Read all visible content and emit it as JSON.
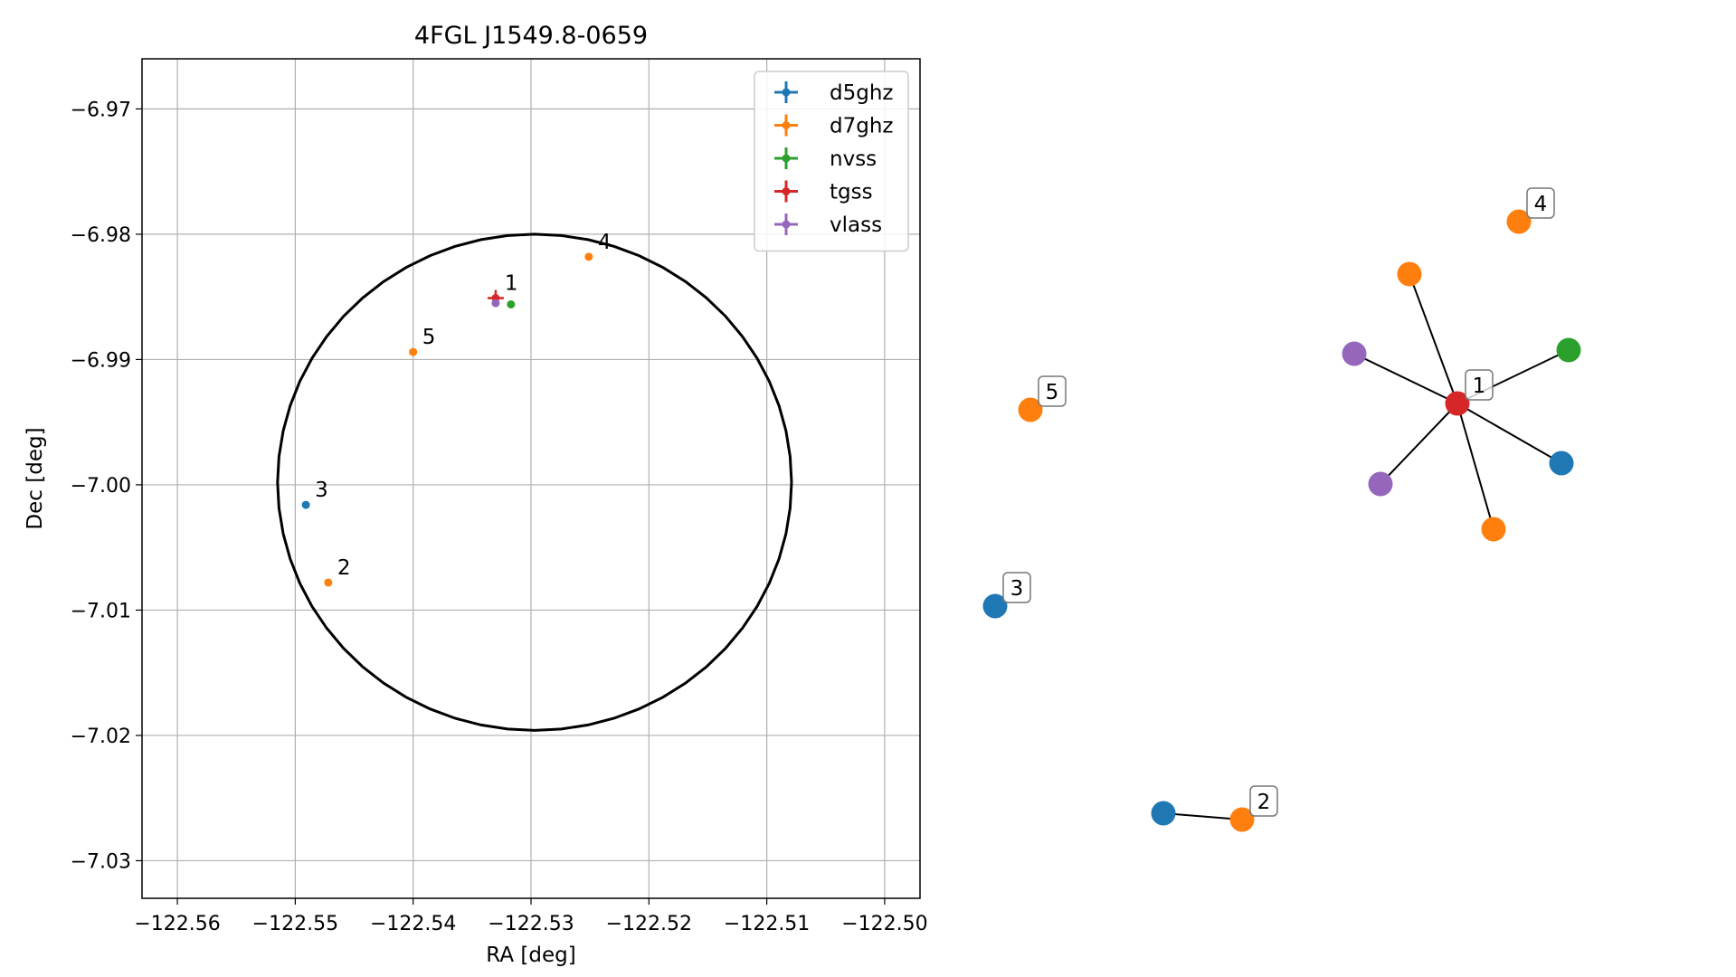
{
  "chart_data": [
    {
      "type": "scatter",
      "title": "4FGL J1549.8-0659",
      "xlabel": "RA [deg]",
      "ylabel": "Dec [deg]",
      "xlim": [
        -122.563,
        -122.497
      ],
      "ylim": [
        -7.033,
        -6.966
      ],
      "x_ticks": [
        -122.56,
        -122.55,
        -122.54,
        -122.53,
        -122.52,
        -122.51,
        -122.5
      ],
      "x_tick_labels": [
        "−122.56",
        "−122.55",
        "−122.54",
        "−122.53",
        "−122.52",
        "−122.51",
        "−122.50"
      ],
      "y_ticks": [
        -6.97,
        -6.98,
        -6.99,
        -7.0,
        -7.01,
        -7.02,
        -7.03
      ],
      "y_tick_labels": [
        "−6.97",
        "−6.98",
        "−6.99",
        "−7.00",
        "−7.01",
        "−7.02",
        "−7.03"
      ],
      "grid": true,
      "legend_position": "top-right",
      "colors": {
        "d5ghz": "#1f77b4",
        "d7ghz": "#ff7f0e",
        "nvss": "#2ca02c",
        "tgss": "#d62728",
        "vlass": "#9467bd"
      },
      "series": [
        {
          "name": "d5ghz",
          "points": [
            {
              "x": -122.5491,
              "y": -7.0016,
              "label": "3"
            }
          ]
        },
        {
          "name": "d7ghz",
          "points": [
            {
              "x": -122.5251,
              "y": -6.9818,
              "label": "4"
            },
            {
              "x": -122.54,
              "y": -6.9894,
              "label": "5"
            },
            {
              "x": -122.5472,
              "y": -7.0078,
              "label": "2"
            }
          ]
        },
        {
          "name": "nvss",
          "points": [
            {
              "x": -122.5317,
              "y": -6.9856,
              "label": ""
            }
          ]
        },
        {
          "name": "tgss",
          "points": [
            {
              "x": -122.533,
              "y": -6.9851,
              "label": "1"
            }
          ]
        },
        {
          "name": "vlass",
          "points": [
            {
              "x": -122.533,
              "y": -6.9855,
              "label": ""
            }
          ]
        }
      ],
      "ellipse": {
        "center_x": -122.5297,
        "center_y": -6.9998,
        "semi_major_x": 0.0218,
        "semi_minor_y": 0.0198
      }
    },
    {
      "type": "network",
      "colors": {
        "d5ghz": "#1f77b4",
        "d7ghz": "#ff7f0e",
        "nvss": "#2ca02c",
        "tgss": "#d62728",
        "vlass": "#9467bd"
      },
      "nodes": [
        {
          "id": "n1",
          "group": "tgss",
          "label": "1"
        },
        {
          "id": "n1a",
          "group": "d7ghz",
          "label": ""
        },
        {
          "id": "n1b",
          "group": "nvss",
          "label": ""
        },
        {
          "id": "n1c",
          "group": "vlass",
          "label": ""
        },
        {
          "id": "n1d",
          "group": "d5ghz",
          "label": ""
        },
        {
          "id": "n1e",
          "group": "vlass",
          "label": ""
        },
        {
          "id": "n1f",
          "group": "d7ghz",
          "label": ""
        },
        {
          "id": "n4",
          "group": "d7ghz",
          "label": "4"
        },
        {
          "id": "n5",
          "group": "d7ghz",
          "label": "5"
        },
        {
          "id": "n3",
          "group": "d5ghz",
          "label": "3"
        },
        {
          "id": "n2a",
          "group": "d5ghz",
          "label": ""
        },
        {
          "id": "n2b",
          "group": "d7ghz",
          "label": "2"
        }
      ],
      "edges": [
        [
          "n1",
          "n1a"
        ],
        [
          "n1",
          "n1b"
        ],
        [
          "n1",
          "n1c"
        ],
        [
          "n1",
          "n1d"
        ],
        [
          "n1",
          "n1e"
        ],
        [
          "n1",
          "n1f"
        ],
        [
          "n2a",
          "n2b"
        ]
      ]
    }
  ]
}
